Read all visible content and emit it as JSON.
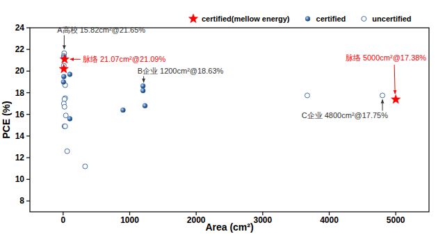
{
  "chart_data": {
    "type": "scatter",
    "x_label": "Area (cm²)",
    "y_label": "PCE (%)",
    "xlim": [
      -500,
      5500
    ],
    "ylim": [
      7,
      24
    ],
    "xticks": [
      0,
      1000,
      2000,
      3000,
      4000,
      5000
    ],
    "yticks": [
      8,
      10,
      12,
      14,
      16,
      18,
      20,
      22,
      24
    ],
    "grid": false,
    "legend": "top",
    "series": [
      {
        "name": "certified(mellow energy)",
        "color": "#ff0000",
        "marker": "star",
        "x": [
          21.07,
          10,
          5000
        ],
        "values": [
          21.09,
          20.2,
          17.38
        ]
      },
      {
        "name": "certified",
        "color": "#2e5c9e",
        "marker": "sphere",
        "x": [
          10,
          10,
          5,
          100,
          100,
          900,
          1200,
          1200,
          1230
        ],
        "values": [
          21.3,
          19.5,
          19.0,
          19.7,
          15.6,
          16.4,
          18.63,
          18.2,
          16.8
        ]
      },
      {
        "name": "uncertified",
        "color": "#2e5c9e",
        "marker": "circle_open",
        "x": [
          15.82,
          10,
          10,
          30,
          30,
          20,
          10,
          20,
          40,
          20,
          30,
          60,
          330,
          3670,
          4800
        ],
        "values": [
          21.65,
          21.4,
          20.5,
          18.7,
          17.5,
          17.4,
          17.0,
          16.7,
          15.9,
          14.9,
          14.9,
          12.6,
          11.2,
          17.75,
          17.75
        ]
      }
    ],
    "annotations": [
      {
        "text": "A高校 15.82cm²@21.65%",
        "x": 15.82,
        "y": 21.65,
        "color": "#333333"
      },
      {
        "text": "脉络 21.07cm²@21.09%",
        "x": 21.07,
        "y": 21.09,
        "color": "#ff0000"
      },
      {
        "text": "B企业 1200cm²@18.63%",
        "x": 1200,
        "y": 18.63,
        "color": "#333333"
      },
      {
        "text": "C企业 4800cm²@17.75%",
        "x": 4800,
        "y": 17.75,
        "color": "#333333"
      },
      {
        "text": "脉络 5000cm²@17.38%",
        "x": 5000,
        "y": 17.38,
        "color": "#ff0000"
      }
    ]
  }
}
